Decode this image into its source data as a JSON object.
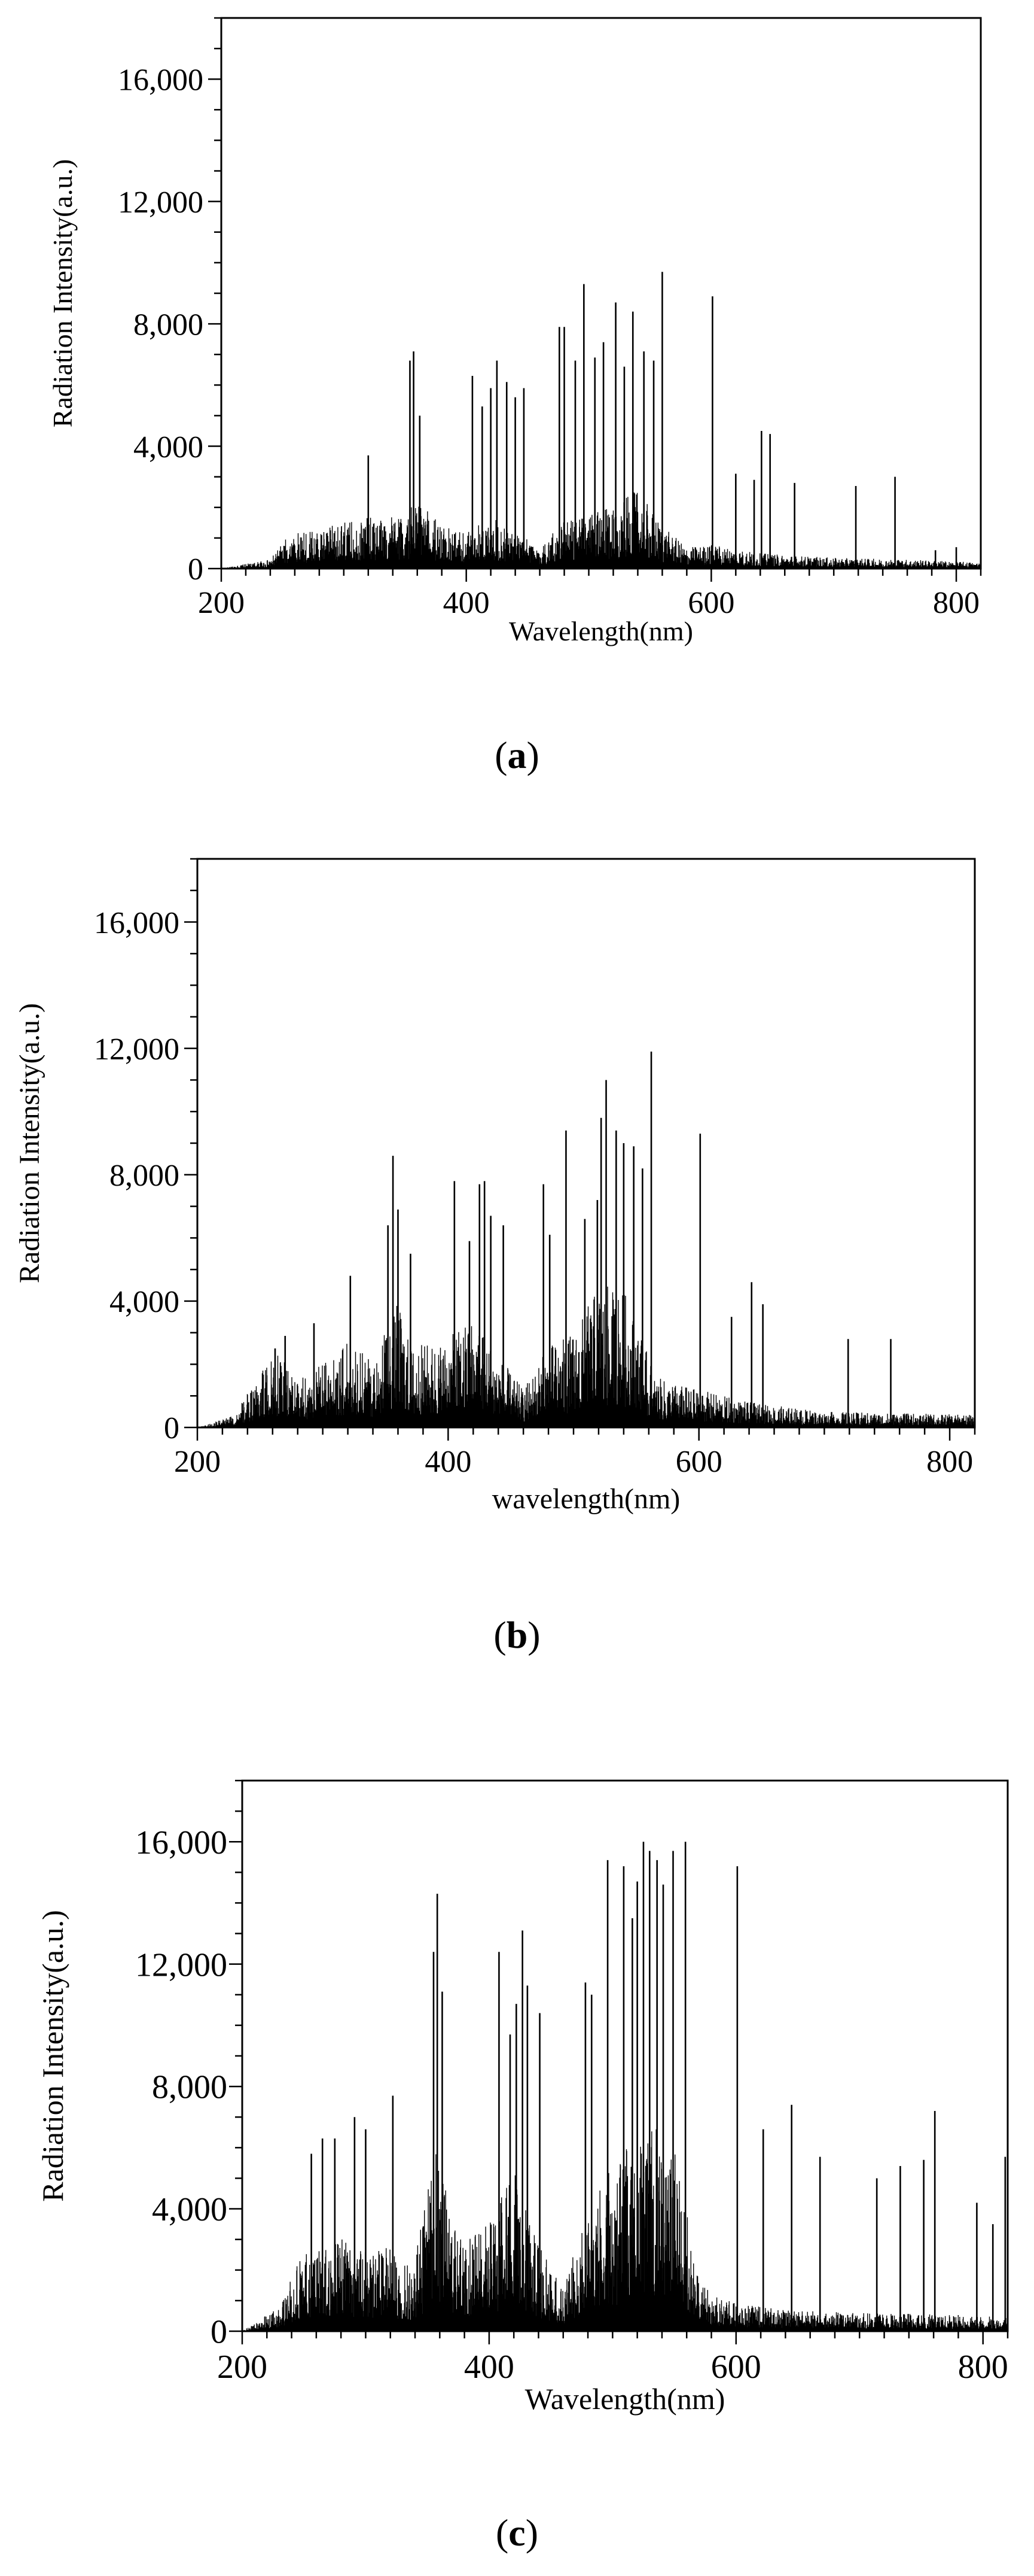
{
  "chart_data": [
    {
      "type": "line",
      "panel": "a",
      "xlabel": "Wavelength(nm)",
      "ylabel": "Radiation Intensity(a.u.)",
      "xlim": [
        200,
        820
      ],
      "ylim": [
        0,
        18000
      ],
      "xticks": [
        200,
        400,
        600,
        800
      ],
      "xtick_labels": [
        "200",
        "400",
        "600",
        "800"
      ],
      "yticks": [
        0,
        4000,
        8000,
        12000,
        16000
      ],
      "ytick_labels": [
        "0",
        "4,000",
        "8,000",
        "12,000",
        "16,000"
      ],
      "grid": false,
      "envelope": [
        [
          200,
          0
        ],
        [
          240,
          300
        ],
        [
          255,
          1100
        ],
        [
          280,
          1300
        ],
        [
          300,
          1500
        ],
        [
          320,
          1700
        ],
        [
          350,
          1800
        ],
        [
          360,
          2200
        ],
        [
          380,
          1500
        ],
        [
          400,
          1200
        ],
        [
          420,
          1700
        ],
        [
          440,
          1200
        ],
        [
          460,
          700
        ],
        [
          480,
          1600
        ],
        [
          500,
          1800
        ],
        [
          520,
          2000
        ],
        [
          540,
          2600
        ],
        [
          560,
          1400
        ],
        [
          580,
          700
        ],
        [
          600,
          800
        ],
        [
          640,
          500
        ],
        [
          700,
          350
        ],
        [
          760,
          300
        ],
        [
          820,
          200
        ]
      ],
      "peaks": [
        [
          320,
          3700
        ],
        [
          354,
          6800
        ],
        [
          357,
          7100
        ],
        [
          362,
          5000
        ],
        [
          405,
          6300
        ],
        [
          413,
          5300
        ],
        [
          420,
          5900
        ],
        [
          425,
          6800
        ],
        [
          433,
          6100
        ],
        [
          440,
          5600
        ],
        [
          447,
          5900
        ],
        [
          476,
          7900
        ],
        [
          480,
          7900
        ],
        [
          489,
          6800
        ],
        [
          496,
          9300
        ],
        [
          505,
          6900
        ],
        [
          512,
          7400
        ],
        [
          522,
          8700
        ],
        [
          529,
          6600
        ],
        [
          536,
          8400
        ],
        [
          545,
          7100
        ],
        [
          553,
          6800
        ],
        [
          560,
          9700
        ],
        [
          601,
          8900
        ],
        [
          620,
          3100
        ],
        [
          635,
          2900
        ],
        [
          641,
          4500
        ],
        [
          648,
          4400
        ],
        [
          668,
          2800
        ],
        [
          718,
          2700
        ],
        [
          750,
          3000
        ],
        [
          783,
          600
        ],
        [
          800,
          700
        ]
      ]
    },
    {
      "type": "line",
      "panel": "b",
      "xlabel": "wavelength(nm)",
      "ylabel": "Radiation Intensity(a.u.)",
      "xlim": [
        200,
        820
      ],
      "ylim": [
        0,
        18000
      ],
      "xticks": [
        200,
        400,
        600,
        800
      ],
      "xtick_labels": [
        "200",
        "400",
        "600",
        "800"
      ],
      "yticks": [
        0,
        4000,
        8000,
        12000,
        16000
      ],
      "ytick_labels": [
        "0",
        "4,000",
        "8,000",
        "12,000",
        "16,000"
      ],
      "grid": false,
      "envelope": [
        [
          200,
          0
        ],
        [
          230,
          400
        ],
        [
          250,
          1800
        ],
        [
          265,
          2300
        ],
        [
          280,
          1500
        ],
        [
          300,
          2000
        ],
        [
          320,
          2700
        ],
        [
          340,
          2200
        ],
        [
          355,
          3500
        ],
        [
          360,
          4000
        ],
        [
          370,
          2600
        ],
        [
          400,
          2800
        ],
        [
          420,
          3600
        ],
        [
          440,
          2300
        ],
        [
          460,
          1200
        ],
        [
          480,
          2600
        ],
        [
          500,
          3000
        ],
        [
          520,
          4500
        ],
        [
          540,
          4400
        ],
        [
          550,
          3400
        ],
        [
          565,
          1600
        ],
        [
          580,
          1400
        ],
        [
          600,
          1200
        ],
        [
          640,
          800
        ],
        [
          700,
          500
        ],
        [
          760,
          450
        ],
        [
          820,
          400
        ]
      ],
      "peaks": [
        [
          262,
          2500
        ],
        [
          270,
          2900
        ],
        [
          293,
          3300
        ],
        [
          322,
          4800
        ],
        [
          352,
          6400
        ],
        [
          356,
          8600
        ],
        [
          360,
          6900
        ],
        [
          370,
          5500
        ],
        [
          405,
          7800
        ],
        [
          417,
          5900
        ],
        [
          425,
          7700
        ],
        [
          429,
          7800
        ],
        [
          434,
          6700
        ],
        [
          444,
          6400
        ],
        [
          476,
          7700
        ],
        [
          481,
          6100
        ],
        [
          494,
          9400
        ],
        [
          509,
          6600
        ],
        [
          519,
          7200
        ],
        [
          522,
          9800
        ],
        [
          526,
          11000
        ],
        [
          534,
          9400
        ],
        [
          540,
          9000
        ],
        [
          548,
          8900
        ],
        [
          555,
          8200
        ],
        [
          562,
          11900
        ],
        [
          601,
          9300
        ],
        [
          626,
          3500
        ],
        [
          642,
          4600
        ],
        [
          651,
          3900
        ],
        [
          719,
          2800
        ],
        [
          753,
          2800
        ]
      ]
    },
    {
      "type": "line",
      "panel": "c",
      "xlabel": "Wavelength(nm)",
      "ylabel": "Radiation Intensity(a.u.)",
      "xlim": [
        200,
        820
      ],
      "ylim": [
        0,
        18000
      ],
      "xticks": [
        200,
        400,
        600,
        800
      ],
      "xtick_labels": [
        "200",
        "400",
        "600",
        "800"
      ],
      "yticks": [
        0,
        4000,
        8000,
        12000,
        16000
      ],
      "ytick_labels": [
        "0",
        "4,000",
        "8,000",
        "12,000",
        "16,000"
      ],
      "grid": false,
      "envelope": [
        [
          200,
          0
        ],
        [
          230,
          800
        ],
        [
          250,
          2800
        ],
        [
          265,
          2600
        ],
        [
          280,
          3100
        ],
        [
          300,
          2600
        ],
        [
          320,
          2800
        ],
        [
          340,
          2300
        ],
        [
          355,
          6000
        ],
        [
          360,
          5600
        ],
        [
          375,
          3000
        ],
        [
          400,
          3600
        ],
        [
          420,
          5400
        ],
        [
          440,
          3000
        ],
        [
          460,
          1400
        ],
        [
          475,
          3500
        ],
        [
          490,
          5000
        ],
        [
          520,
          6500
        ],
        [
          540,
          6800
        ],
        [
          555,
          5400
        ],
        [
          565,
          2400
        ],
        [
          580,
          1200
        ],
        [
          600,
          900
        ],
        [
          640,
          700
        ],
        [
          700,
          600
        ],
        [
          760,
          550
        ],
        [
          820,
          500
        ]
      ],
      "peaks": [
        [
          256,
          5800
        ],
        [
          265,
          6300
        ],
        [
          275,
          6300
        ],
        [
          291,
          7000
        ],
        [
          300,
          6600
        ],
        [
          322,
          7700
        ],
        [
          355,
          12400
        ],
        [
          358,
          14300
        ],
        [
          362,
          11100
        ],
        [
          408,
          12400
        ],
        [
          417,
          9700
        ],
        [
          422,
          10700
        ],
        [
          427,
          13100
        ],
        [
          431,
          11300
        ],
        [
          441,
          10400
        ],
        [
          478,
          11400
        ],
        [
          483,
          11000
        ],
        [
          496,
          15400
        ],
        [
          509,
          15200
        ],
        [
          516,
          13500
        ],
        [
          520,
          14700
        ],
        [
          525,
          16000
        ],
        [
          530,
          15700
        ],
        [
          536,
          15400
        ],
        [
          541,
          14600
        ],
        [
          549,
          15700
        ],
        [
          559,
          16000
        ],
        [
          601,
          15200
        ],
        [
          622,
          6600
        ],
        [
          645,
          7400
        ],
        [
          668,
          5700
        ],
        [
          714,
          5000
        ],
        [
          733,
          5400
        ],
        [
          752,
          5600
        ],
        [
          761,
          7200
        ],
        [
          795,
          4200
        ],
        [
          808,
          3500
        ],
        [
          818,
          5700
        ]
      ]
    }
  ],
  "panels": [
    {
      "label": "a"
    },
    {
      "label": "b"
    },
    {
      "label": "c"
    }
  ]
}
